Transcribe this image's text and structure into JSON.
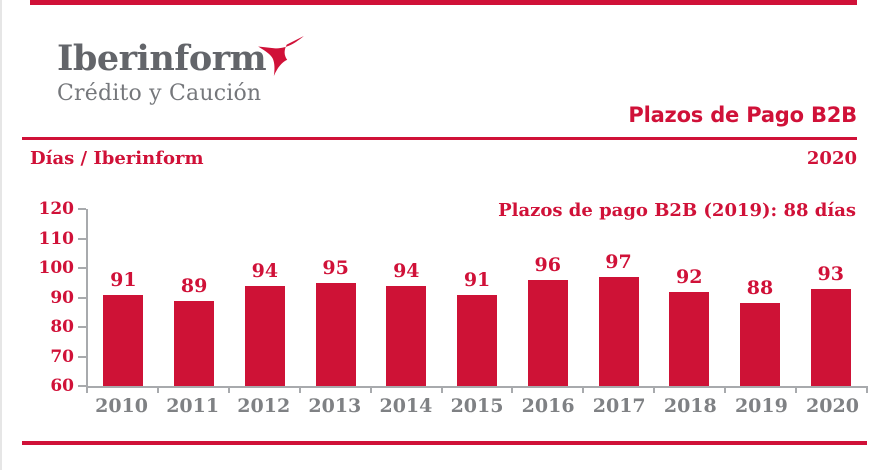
{
  "brand": {
    "logo_title": "Iberinform",
    "logo_subtitle": "Crédito y Caución",
    "icon": "weathervane-icon"
  },
  "header": {
    "title": "Plazos de Pago B2B",
    "axis_caption": "Días / Iberinform",
    "report_year": "2020"
  },
  "annotation": {
    "text": "Plazos de pago B2B (2019): 88 días"
  },
  "colors": {
    "brand_red": "#d01138",
    "bar_red": "#ce1236",
    "logo_gray": "#63656a",
    "logo_subtitle_gray": "#75777b",
    "axis_gray": "#a8aaad",
    "year_label_gray": "#7f8184"
  },
  "chart_data": {
    "type": "bar",
    "title": "Plazos de Pago B2B",
    "xlabel": "",
    "ylabel": "Días",
    "categories": [
      "2010",
      "2011",
      "2012",
      "2013",
      "2014",
      "2015",
      "2016",
      "2017",
      "2018",
      "2019",
      "2020"
    ],
    "values": [
      91,
      89,
      94,
      95,
      94,
      91,
      96,
      97,
      92,
      88,
      93
    ],
    "ylim": [
      60,
      120
    ],
    "yticks": [
      60,
      70,
      80,
      90,
      100,
      110,
      120
    ],
    "grid": false,
    "legend": null,
    "value_labels": true,
    "annotation": "Plazos de pago B2B (2019): 88 días"
  }
}
